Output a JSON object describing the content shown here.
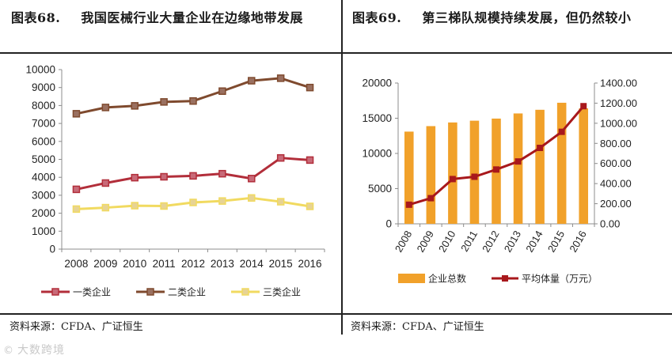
{
  "left": {
    "title_num": "图表68.",
    "title_text": "我国医械行业大量企业在边缘地带发展",
    "source": "资料来源：CFDA、广证恒生"
  },
  "right": {
    "title_num": "图表69.",
    "title_text": "第三梯队规模持续发展，但仍然较小",
    "source": "资料来源：CFDA、广证恒生"
  },
  "watermark": {
    "logo": "©",
    "text": "大数跨境"
  },
  "colors": {
    "series1": "#b22e3a",
    "series1_marker": "#c86a78",
    "series2": "#7f4a2e",
    "series2_marker": "#9a7060",
    "series3": "#f1da60",
    "series3_marker": "#e7d394",
    "bar": "#f1a12a",
    "line": "#a8181c",
    "line_marker": "#a8181c",
    "axis": "#8c8c8c",
    "grid": "#d9d9d9"
  },
  "chart_data": [
    {
      "type": "line",
      "categories": [
        "2008",
        "2009",
        "2010",
        "2011",
        "2012",
        "2013",
        "2014",
        "2015",
        "2016"
      ],
      "series": [
        {
          "name": "一类企业",
          "values": [
            3330,
            3680,
            3980,
            4030,
            4080,
            4200,
            3930,
            5080,
            4960
          ]
        },
        {
          "name": "二类企业",
          "values": [
            7540,
            7890,
            7980,
            8200,
            8250,
            8800,
            9380,
            9520,
            9000
          ]
        },
        {
          "name": "三类企业",
          "values": [
            2230,
            2310,
            2420,
            2400,
            2600,
            2680,
            2850,
            2640,
            2380
          ]
        }
      ],
      "ylim": [
        0,
        10000
      ],
      "yticks": [
        0,
        1000,
        2000,
        3000,
        4000,
        5000,
        6000,
        7000,
        8000,
        9000,
        10000
      ],
      "grid": false,
      "legend": "bottom"
    },
    {
      "type": "bar",
      "categories": [
        "2008",
        "2009",
        "2010",
        "2011",
        "2012",
        "2013",
        "2014",
        "2015",
        "2016"
      ],
      "series": [
        {
          "name": "企业总数",
          "type": "bar",
          "axis": "left",
          "values": [
            13100,
            13880,
            14400,
            14650,
            14950,
            15680,
            16200,
            17200,
            16400
          ]
        },
        {
          "name": "平均体量（万元）",
          "type": "line",
          "axis": "right",
          "values": [
            190,
            255,
            445,
            468,
            540,
            620,
            755,
            915,
            1170
          ]
        }
      ],
      "ylim": [
        0,
        20000
      ],
      "yticks": [
        0,
        5000,
        10000,
        15000,
        20000
      ],
      "y2lim": [
        0,
        1400
      ],
      "y2ticks": [
        "0.00",
        "200.00",
        "400.00",
        "600.00",
        "800.00",
        "1000.00",
        "1200.00",
        "1400.00"
      ],
      "grid": false,
      "legend": "bottom"
    }
  ]
}
